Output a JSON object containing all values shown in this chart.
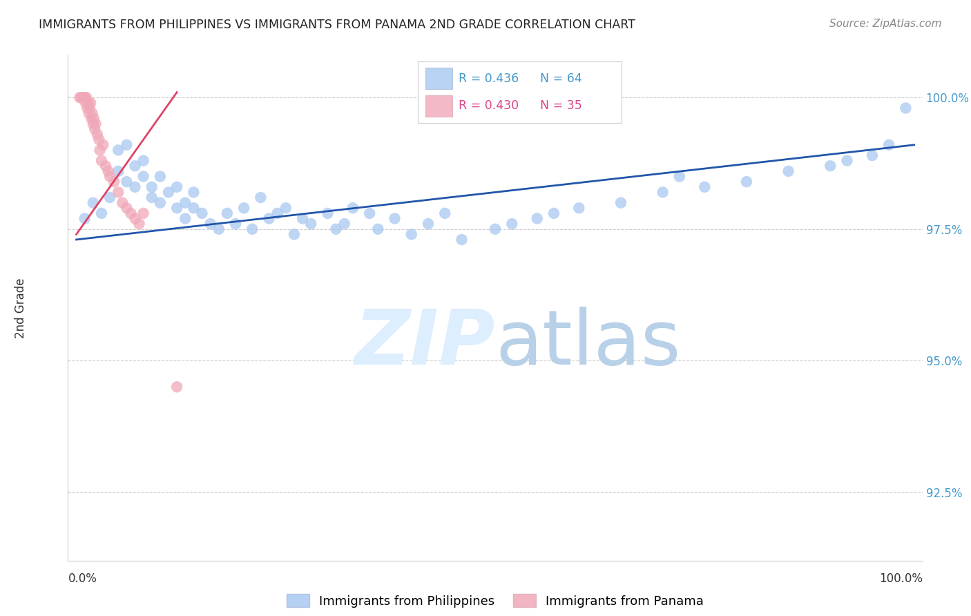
{
  "title": "IMMIGRANTS FROM PHILIPPINES VS IMMIGRANTS FROM PANAMA 2ND GRADE CORRELATION CHART",
  "source_text": "Source: ZipAtlas.com",
  "ylabel": "2nd Grade",
  "y_ticks": [
    92.5,
    95.0,
    97.5,
    100.0
  ],
  "y_tick_labels": [
    "92.5%",
    "95.0%",
    "97.5%",
    "100.0%"
  ],
  "y_min": 91.2,
  "y_max": 100.8,
  "x_min": -0.01,
  "x_max": 1.01,
  "legend_blue_r": "R = 0.436",
  "legend_blue_n": "N = 64",
  "legend_pink_r": "R = 0.430",
  "legend_pink_n": "N = 35",
  "legend_blue_label": "Immigrants from Philippines",
  "legend_pink_label": "Immigrants from Panama",
  "blue_color": "#a8c8f0",
  "blue_line_color": "#2255aa",
  "pink_color": "#f0a8b8",
  "pink_line_color": "#dd4466",
  "watermark_color": "#ddeeff",
  "blue_scatter_x": [
    0.01,
    0.02,
    0.03,
    0.04,
    0.05,
    0.05,
    0.06,
    0.06,
    0.07,
    0.07,
    0.08,
    0.08,
    0.09,
    0.09,
    0.1,
    0.1,
    0.11,
    0.12,
    0.12,
    0.13,
    0.13,
    0.14,
    0.14,
    0.15,
    0.16,
    0.17,
    0.18,
    0.19,
    0.2,
    0.21,
    0.22,
    0.23,
    0.24,
    0.25,
    0.26,
    0.27,
    0.28,
    0.3,
    0.31,
    0.32,
    0.33,
    0.35,
    0.36,
    0.38,
    0.4,
    0.42,
    0.44,
    0.46,
    0.5,
    0.52,
    0.55,
    0.57,
    0.6,
    0.65,
    0.7,
    0.72,
    0.75,
    0.8,
    0.85,
    0.9,
    0.92,
    0.95,
    0.97,
    0.99
  ],
  "blue_scatter_y": [
    97.7,
    98.0,
    97.8,
    98.1,
    99.0,
    98.6,
    99.1,
    98.4,
    98.7,
    98.3,
    98.5,
    98.8,
    98.1,
    98.3,
    98.0,
    98.5,
    98.2,
    98.3,
    97.9,
    98.0,
    97.7,
    97.9,
    98.2,
    97.8,
    97.6,
    97.5,
    97.8,
    97.6,
    97.9,
    97.5,
    98.1,
    97.7,
    97.8,
    97.9,
    97.4,
    97.7,
    97.6,
    97.8,
    97.5,
    97.6,
    97.9,
    97.8,
    97.5,
    97.7,
    97.4,
    97.6,
    97.8,
    97.3,
    97.5,
    97.6,
    97.7,
    97.8,
    97.9,
    98.0,
    98.2,
    98.5,
    98.3,
    98.4,
    98.6,
    98.7,
    98.8,
    98.9,
    99.1,
    99.8
  ],
  "pink_scatter_x": [
    0.004,
    0.006,
    0.008,
    0.009,
    0.01,
    0.011,
    0.012,
    0.013,
    0.014,
    0.015,
    0.016,
    0.017,
    0.018,
    0.019,
    0.02,
    0.021,
    0.022,
    0.023,
    0.025,
    0.027,
    0.028,
    0.03,
    0.032,
    0.035,
    0.038,
    0.04,
    0.045,
    0.05,
    0.055,
    0.06,
    0.065,
    0.07,
    0.075,
    0.08,
    0.12
  ],
  "pink_scatter_y": [
    100.0,
    100.0,
    100.0,
    100.0,
    100.0,
    99.9,
    100.0,
    99.8,
    99.9,
    99.7,
    99.8,
    99.9,
    99.6,
    99.7,
    99.5,
    99.6,
    99.4,
    99.5,
    99.3,
    99.2,
    99.0,
    98.8,
    99.1,
    98.7,
    98.6,
    98.5,
    98.4,
    98.2,
    98.0,
    97.9,
    97.8,
    97.7,
    97.6,
    97.8,
    94.5
  ],
  "blue_trendline_x": [
    0.0,
    1.0
  ],
  "blue_trendline_y": [
    97.3,
    99.1
  ],
  "pink_trendline_x": [
    0.0,
    0.12
  ],
  "pink_trendline_y": [
    97.4,
    100.1
  ]
}
